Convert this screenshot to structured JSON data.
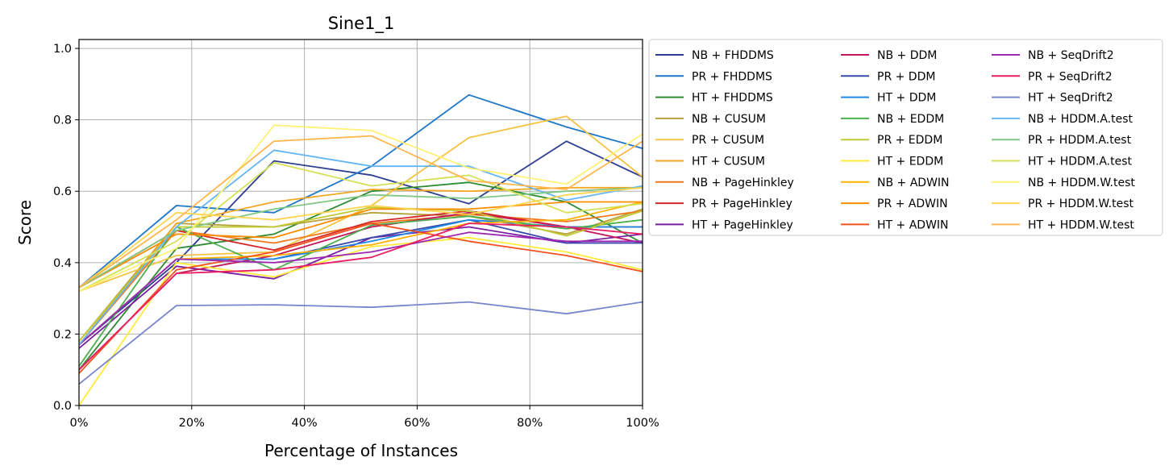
{
  "chart_data": {
    "type": "line",
    "title": "Sine1_1",
    "xlabel": "Percentage of Instances",
    "ylabel": "Score",
    "x": [
      0,
      17.3,
      34.6,
      51.9,
      69.2,
      86.5,
      100
    ],
    "xlim": [
      0,
      100
    ],
    "ylim": [
      0,
      1.025
    ],
    "xticks": [
      0,
      20,
      40,
      60,
      80,
      100
    ],
    "xtick_labels": [
      "0%",
      "20%",
      "40%",
      "60%",
      "80%",
      "100%"
    ],
    "yticks": [
      0.0,
      0.2,
      0.4,
      0.6,
      0.8,
      1.0
    ],
    "ytick_labels": [
      "0.0",
      "0.2",
      "0.4",
      "0.6",
      "0.8",
      "1.0"
    ],
    "grid": true,
    "legend_position": "outside-right-top",
    "legend_columns": 3,
    "series": [
      {
        "name": "NB + FHDDMS",
        "color": "#2c3e91",
        "values": [
          0.17,
          0.4,
          0.685,
          0.645,
          0.565,
          0.74,
          0.64
        ]
      },
      {
        "name": "PR + FHDDMS",
        "color": "#1f77c8",
        "values": [
          0.33,
          0.56,
          0.54,
          0.67,
          0.87,
          0.78,
          0.72
        ]
      },
      {
        "name": "HT + FHDDMS",
        "color": "#2e8b32",
        "values": [
          0.1,
          0.44,
          0.48,
          0.6,
          0.625,
          0.57,
          0.455
        ]
      },
      {
        "name": "NB + CUSUM",
        "color": "#b5a33a",
        "values": [
          0.18,
          0.51,
          0.5,
          0.54,
          0.53,
          0.48,
          0.55
        ]
      },
      {
        "name": "PR + CUSUM",
        "color": "#f5c342",
        "values": [
          0.32,
          0.42,
          0.43,
          0.56,
          0.75,
          0.81,
          0.64
        ]
      },
      {
        "name": "HT + CUSUM",
        "color": "#f5a623",
        "values": [
          0.17,
          0.51,
          0.57,
          0.605,
          0.6,
          0.61,
          0.61
        ]
      },
      {
        "name": "NB + PageHinkley",
        "color": "#f07a1a",
        "values": [
          0.17,
          0.49,
          0.455,
          0.51,
          0.535,
          0.515,
          0.545
        ]
      },
      {
        "name": "PR + PageHinkley",
        "color": "#d62728",
        "values": [
          0.33,
          0.49,
          0.435,
          0.515,
          0.545,
          0.5,
          0.5
        ]
      },
      {
        "name": "HT + PageHinkley",
        "color": "#7b1fa2",
        "values": [
          0.16,
          0.39,
          0.355,
          0.47,
          0.5,
          0.455,
          0.48
        ]
      },
      {
        "name": "NB + DDM",
        "color": "#c2185b",
        "values": [
          0.1,
          0.37,
          0.42,
          0.5,
          0.54,
          0.5,
          0.455
        ]
      },
      {
        "name": "PR + DDM",
        "color": "#3949ab",
        "values": [
          0.17,
          0.41,
          0.41,
          0.47,
          0.52,
          0.455,
          0.455
        ]
      },
      {
        "name": "HT + DDM",
        "color": "#1e88e5",
        "values": [
          0.17,
          0.41,
          0.41,
          0.46,
          0.52,
          0.5,
          0.5
        ]
      },
      {
        "name": "NB + EDDM",
        "color": "#4caf50",
        "values": [
          0.11,
          0.5,
          0.38,
          0.505,
          0.53,
          0.495,
          0.52
        ]
      },
      {
        "name": "PR + EDDM",
        "color": "#c0ca33",
        "values": [
          0.18,
          0.5,
          0.5,
          0.555,
          0.545,
          0.475,
          0.545
        ]
      },
      {
        "name": "HT + EDDM",
        "color": "#ffeb3b",
        "values": [
          0.0,
          0.4,
          0.36,
          0.445,
          0.47,
          0.43,
          0.38
        ]
      },
      {
        "name": "NB + ADWIN",
        "color": "#ffb300",
        "values": [
          0.17,
          0.41,
          0.42,
          0.45,
          0.51,
          0.52,
          0.57
        ]
      },
      {
        "name": "PR + ADWIN",
        "color": "#fb8c00",
        "values": [
          0.33,
          0.48,
          0.47,
          0.55,
          0.55,
          0.57,
          0.57
        ]
      },
      {
        "name": "HT + ADWIN",
        "color": "#f4511e",
        "values": [
          0.09,
          0.38,
          0.43,
          0.51,
          0.46,
          0.42,
          0.375
        ]
      },
      {
        "name": "NB + SeqDrift2",
        "color": "#9c27b0",
        "values": [
          0.17,
          0.41,
          0.4,
          0.43,
          0.485,
          0.46,
          0.46
        ]
      },
      {
        "name": "PR + SeqDrift2",
        "color": "#e91e63",
        "values": [
          0.1,
          0.37,
          0.38,
          0.415,
          0.51,
          0.5,
          0.48
        ]
      },
      {
        "name": "HT + SeqDrift2",
        "color": "#7986cb",
        "values": [
          0.06,
          0.28,
          0.282,
          0.275,
          0.29,
          0.257,
          0.29
        ]
      },
      {
        "name": "NB + HDDM.A.test",
        "color": "#64b5f6",
        "values": [
          0.17,
          0.5,
          0.715,
          0.67,
          0.67,
          0.575,
          0.615
        ]
      },
      {
        "name": "PR + HDDM.A.test",
        "color": "#81c784",
        "values": [
          0.33,
          0.49,
          0.55,
          0.59,
          0.58,
          0.6,
          0.61
        ]
      },
      {
        "name": "HT + HDDM.A.test",
        "color": "#d4e157",
        "values": [
          0.32,
          0.46,
          0.68,
          0.615,
          0.645,
          0.54,
          0.565
        ]
      },
      {
        "name": "NB + HDDM.W.test",
        "color": "#fff176",
        "values": [
          0.32,
          0.44,
          0.785,
          0.77,
          0.665,
          0.62,
          0.76
        ]
      },
      {
        "name": "PR + HDDM.W.test",
        "color": "#ffd54f",
        "values": [
          0.33,
          0.54,
          0.52,
          0.56,
          0.535,
          0.59,
          0.61
        ]
      },
      {
        "name": "HT + HDDM.W.test",
        "color": "#ffb74d",
        "values": [
          0.33,
          0.52,
          0.74,
          0.755,
          0.63,
          0.605,
          0.74
        ]
      }
    ]
  }
}
